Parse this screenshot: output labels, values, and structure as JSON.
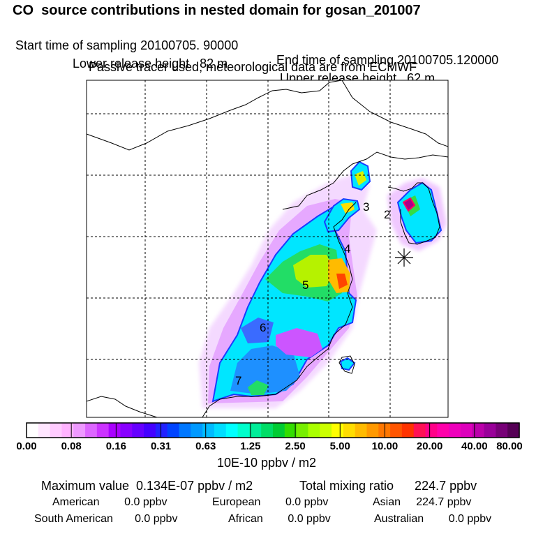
{
  "header": {
    "title": "CO  source contributions in nested domain for gosan_201007",
    "start_label": "Start time of sampling 20100705. 90000",
    "end_label": "End time of sampling 20100705.120000",
    "lower_label": "Lower release height   82 m",
    "upper_label": "Upper release height   62 m",
    "note": "Passive tracer used, meteorological data are from ECMWF"
  },
  "map": {
    "region_labels": [
      "2",
      "3",
      "4",
      "5",
      "6",
      "7"
    ],
    "receptor_marker": "receptor-star"
  },
  "colorbar": {
    "ticks": [
      "0.00",
      "0.08",
      "0.16",
      "0.31",
      "0.63",
      "1.25",
      "2.50",
      "5.00",
      "10.00",
      "20.00",
      "40.00",
      "80.00"
    ],
    "units": "10E-10 ppbv / m2",
    "colors": [
      "#ffffff",
      "#ffe6ff",
      "#ffccff",
      "#ffb3ff",
      "#ee99ff",
      "#dd66ff",
      "#cc33ff",
      "#aa00ff",
      "#8800ff",
      "#6600ff",
      "#4400ff",
      "#2222ff",
      "#0044ff",
      "#0077ff",
      "#0099ff",
      "#00bbff",
      "#00ddff",
      "#00ffff",
      "#00ffcc",
      "#00ee99",
      "#00dd66",
      "#00cc33",
      "#33dd00",
      "#77ee00",
      "#aaff00",
      "#ccff00",
      "#ffff00",
      "#ffdd00",
      "#ffbb00",
      "#ff9900",
      "#ff7700",
      "#ff5500",
      "#ff3300",
      "#ff1155",
      "#ff0088",
      "#ff00aa",
      "#ee00bb",
      "#dd00bb",
      "#bb00aa",
      "#990099",
      "#770077",
      "#550055"
    ]
  },
  "footer": {
    "max_label": "Maximum value  0.134E-07 ppbv / m2",
    "total_label": "Total mixing ratio      224.7 ppbv",
    "american": "American        0.0 ppbv",
    "european": "European        0.0 ppbv",
    "asian": "Asian     224.7 ppbv",
    "south_american": "South American       0.0 ppbv",
    "african": "African        0.0 ppbv",
    "australian": "Australian        0.0 ppbv"
  }
}
